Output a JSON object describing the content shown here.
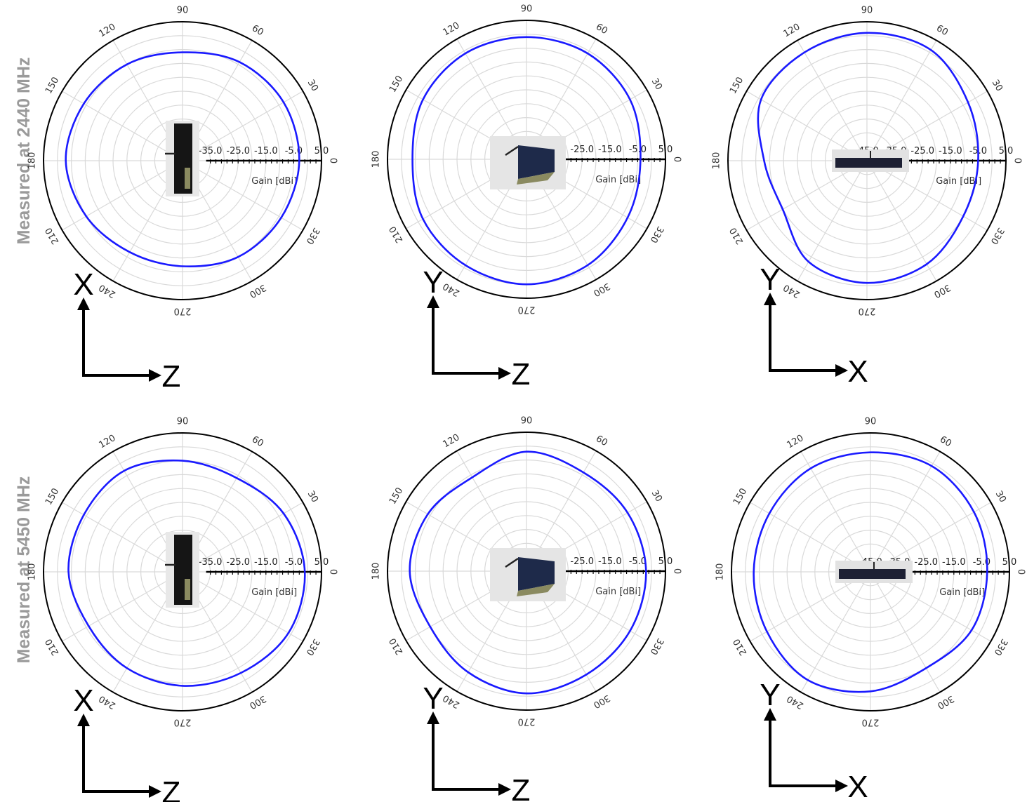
{
  "row_labels": [
    "Measured at 2440 MHz",
    "Measured at 5450 MHz"
  ],
  "colors": {
    "pattern": "#1a1aff",
    "grid": "#d9d9d9",
    "outer_ring": "#000000",
    "row_label": "#9a9a9a",
    "arrow": "#000000"
  },
  "chart_data": [
    {
      "type": "polar-line",
      "frequency": "2440 MHz",
      "radial_label": "Gain [dBi]",
      "radial_ticks": [
        "-45.0",
        "-35.0",
        "-25.0",
        "-15.0",
        "-5.0",
        "5.0"
      ],
      "rlim": [
        -45,
        5
      ],
      "angle_ticks": [
        "0",
        "30",
        "60",
        "90",
        "120",
        "150",
        "180",
        "210",
        "240",
        "270",
        "300",
        "330"
      ],
      "axes": {
        "vertical": "X",
        "horizontal": "Z"
      },
      "theta_deg": [
        0,
        30,
        60,
        90,
        120,
        150,
        180,
        210,
        240,
        270,
        300,
        330
      ],
      "gain_dbi": [
        -3,
        -3,
        -4,
        -6,
        -5,
        -4,
        -3,
        -5,
        -7,
        -7,
        -5,
        -4
      ]
    },
    {
      "type": "polar-line",
      "frequency": "2440 MHz",
      "radial_label": "Gain [dBi]",
      "radial_ticks": [
        "-45.0",
        "-35.0",
        "-25.0",
        "-15.0",
        "-5.0",
        "5.0"
      ],
      "rlim": [
        -45,
        5
      ],
      "angle_ticks": [
        "0",
        "30",
        "60",
        "90",
        "120",
        "150",
        "180",
        "210",
        "240",
        "270",
        "300",
        "330"
      ],
      "axes": {
        "vertical": "Y",
        "horizontal": "Z"
      },
      "theta_deg": [
        0,
        30,
        60,
        90,
        120,
        150,
        180,
        210,
        240,
        270,
        300,
        330
      ],
      "gain_dbi": [
        -4,
        -2,
        -1,
        -1,
        -1,
        -2,
        -4,
        -2,
        -1,
        0,
        -1,
        -3
      ]
    },
    {
      "type": "polar-line",
      "frequency": "2440 MHz",
      "radial_label": "Gain [dBi]",
      "radial_ticks": [
        "-45.0",
        "-35.0",
        "-25.0",
        "-15.0",
        "-5.0",
        "5.0"
      ],
      "rlim": [
        -45,
        5
      ],
      "angle_ticks": [
        "0",
        "30",
        "60",
        "90",
        "120",
        "150",
        "180",
        "210",
        "240",
        "270",
        "300",
        "330"
      ],
      "axes": {
        "vertical": "Y",
        "horizontal": "X"
      },
      "theta_deg": [
        0,
        30,
        60,
        90,
        120,
        150,
        180,
        210,
        240,
        270,
        300,
        330
      ],
      "gain_dbi": [
        -5,
        -3,
        1,
        1,
        0,
        -1,
        -8,
        -10,
        -3,
        -1,
        -2,
        -5
      ]
    },
    {
      "type": "polar-line",
      "frequency": "5450 MHz",
      "radial_label": "Gain [dBi]",
      "radial_ticks": [
        "-45.0",
        "-35.0",
        "-25.0",
        "-15.0",
        "-5.0",
        "5.0"
      ],
      "rlim": [
        -45,
        5
      ],
      "angle_ticks": [
        "0",
        "30",
        "60",
        "90",
        "120",
        "150",
        "180",
        "210",
        "240",
        "270",
        "300",
        "330"
      ],
      "axes": {
        "vertical": "X",
        "horizontal": "Z"
      },
      "theta_deg": [
        0,
        30,
        60,
        90,
        120,
        150,
        180,
        210,
        240,
        270,
        300,
        330
      ],
      "gain_dbi": [
        -1,
        -3,
        -6,
        -5,
        -3,
        -4,
        -4,
        -6,
        -5,
        -4,
        -3,
        -1
      ]
    },
    {
      "type": "polar-line",
      "frequency": "5450 MHz",
      "radial_label": "Gain [dBi]",
      "radial_ticks": [
        "-45.0",
        "-35.0",
        "-25.0",
        "-15.0",
        "-5.0",
        "5.0"
      ],
      "rlim": [
        -45,
        5
      ],
      "angle_ticks": [
        "0",
        "30",
        "60",
        "90",
        "120",
        "150",
        "180",
        "210",
        "240",
        "270",
        "300",
        "330"
      ],
      "axes": {
        "vertical": "Y",
        "horizontal": "Z"
      },
      "theta_deg": [
        0,
        30,
        60,
        90,
        120,
        150,
        180,
        210,
        240,
        270,
        300,
        330
      ],
      "gain_dbi": [
        -2,
        -3,
        -4,
        -2,
        -6,
        -4,
        -3,
        -5,
        -3,
        -1,
        -2,
        -2
      ]
    },
    {
      "type": "polar-line",
      "frequency": "5450 MHz",
      "radial_label": "Gain [dBi]",
      "radial_ticks": [
        "-45.0",
        "-35.0",
        "-25.0",
        "-15.0",
        "-5.0",
        "5.0"
      ],
      "rlim": [
        -45,
        5
      ],
      "angle_ticks": [
        "0",
        "30",
        "60",
        "90",
        "120",
        "150",
        "180",
        "210",
        "240",
        "270",
        "300",
        "330"
      ],
      "axes": {
        "vertical": "Y",
        "horizontal": "X"
      },
      "theta_deg": [
        0,
        30,
        60,
        90,
        120,
        150,
        180,
        210,
        240,
        270,
        300,
        330
      ],
      "gain_dbi": [
        -3,
        -2,
        -1,
        -2,
        -2,
        -3,
        -3,
        -2,
        0,
        -2,
        -5,
        -3
      ]
    }
  ]
}
